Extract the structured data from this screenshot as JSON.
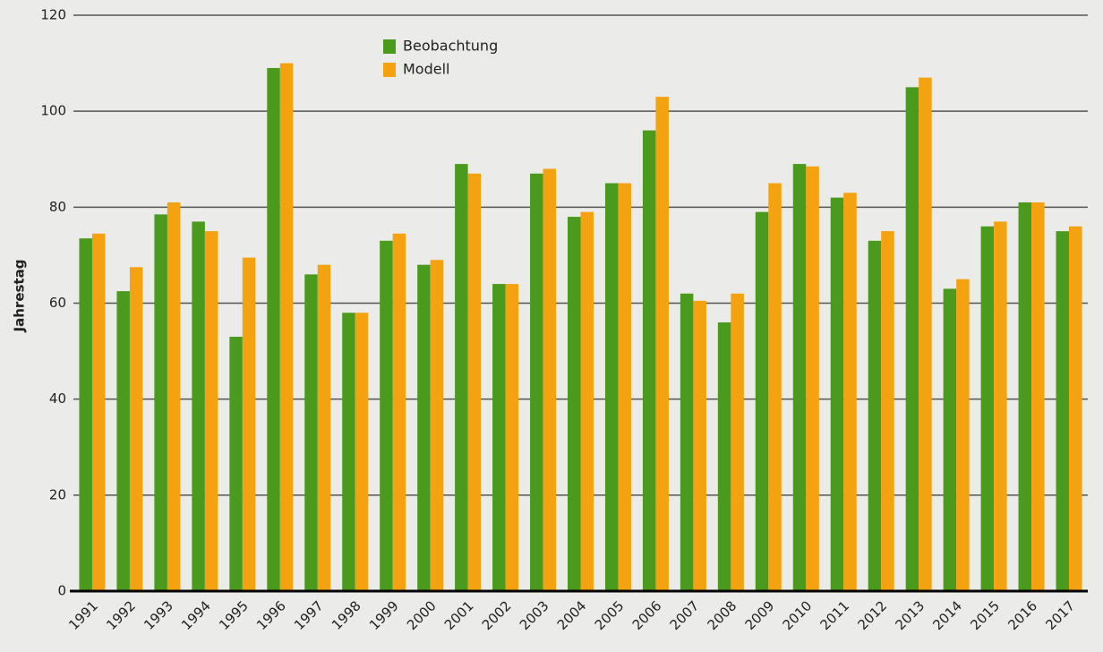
{
  "chart_data": {
    "type": "bar",
    "y_label": "Jahrestag",
    "categories": [
      "1991",
      "1992",
      "1993",
      "1994",
      "1995",
      "1996",
      "1997",
      "1998",
      "1999",
      "2000",
      "2001",
      "2002",
      "2003",
      "2004",
      "2005",
      "2006",
      "2007",
      "2008",
      "2009",
      "2010",
      "2011",
      "2012",
      "2013",
      "2014",
      "2015",
      "2016",
      "2017"
    ],
    "series": [
      {
        "name": "Beobachtung",
        "color": "#4a9a1e",
        "values": [
          73.5,
          62.5,
          78.5,
          77,
          53,
          109,
          66,
          58,
          73,
          68,
          89,
          64,
          87,
          78,
          85,
          96,
          62,
          56,
          79,
          89,
          82,
          73,
          105,
          63,
          76,
          81,
          75
        ]
      },
      {
        "name": "Modell",
        "color": "#f5a210",
        "values": [
          74.5,
          67.5,
          81,
          75,
          69.5,
          110,
          68,
          58,
          74.5,
          69,
          87,
          64,
          88,
          79,
          85,
          103,
          60.5,
          62,
          85,
          88.5,
          83,
          75,
          107,
          65,
          77,
          81,
          76
        ]
      }
    ],
    "ylim": [
      0,
      120
    ],
    "yticks": [
      0,
      20,
      40,
      60,
      80,
      100,
      120
    ],
    "grid": true,
    "legend": "top-left"
  }
}
